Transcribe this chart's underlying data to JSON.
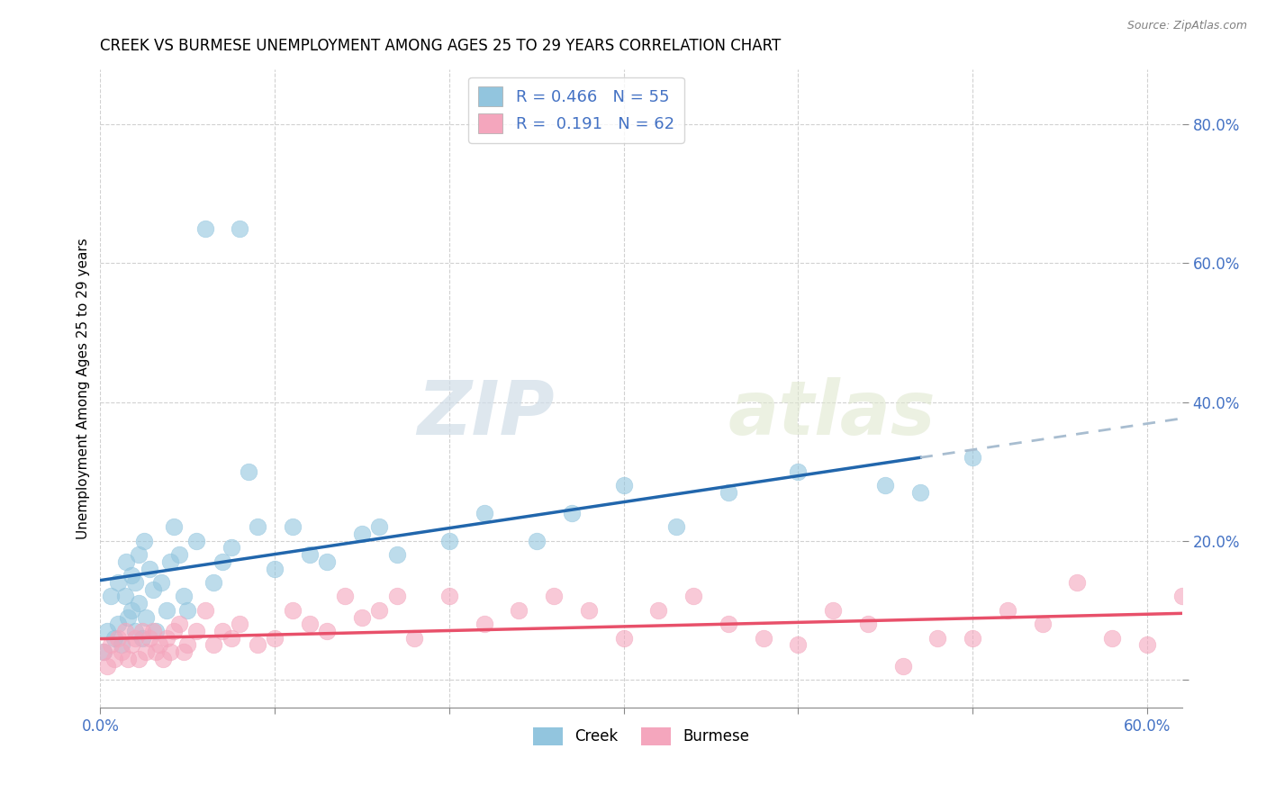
{
  "title": "CREEK VS BURMESE UNEMPLOYMENT AMONG AGES 25 TO 29 YEARS CORRELATION CHART",
  "source": "Source: ZipAtlas.com",
  "ylabel": "Unemployment Among Ages 25 to 29 years",
  "xlim": [
    0.0,
    0.62
  ],
  "ylim": [
    -0.04,
    0.88
  ],
  "xtick_vals": [
    0.0,
    0.1,
    0.2,
    0.3,
    0.4,
    0.5,
    0.6
  ],
  "ytick_vals": [
    0.0,
    0.2,
    0.4,
    0.6,
    0.8
  ],
  "creek_color": "#92c5de",
  "burmese_color": "#f4a6bd",
  "creek_line_color": "#2166ac",
  "burmese_line_color": "#e8506a",
  "trend_ext_color": "#a8bdd0",
  "legend_creek_r": "0.466",
  "legend_creek_n": "55",
  "legend_burmese_r": "0.191",
  "legend_burmese_n": "62",
  "watermark_zip": "ZIP",
  "watermark_atlas": "atlas",
  "background_color": "#ffffff",
  "grid_color": "#cccccc",
  "creek_x": [
    0.002,
    0.004,
    0.006,
    0.008,
    0.01,
    0.01,
    0.012,
    0.014,
    0.015,
    0.016,
    0.018,
    0.018,
    0.02,
    0.02,
    0.022,
    0.022,
    0.024,
    0.025,
    0.026,
    0.028,
    0.03,
    0.032,
    0.035,
    0.038,
    0.04,
    0.042,
    0.045,
    0.048,
    0.05,
    0.055,
    0.06,
    0.065,
    0.07,
    0.075,
    0.08,
    0.085,
    0.09,
    0.1,
    0.11,
    0.12,
    0.13,
    0.15,
    0.16,
    0.17,
    0.2,
    0.22,
    0.25,
    0.27,
    0.3,
    0.33,
    0.36,
    0.4,
    0.45,
    0.47,
    0.5
  ],
  "creek_y": [
    0.04,
    0.07,
    0.12,
    0.06,
    0.14,
    0.08,
    0.05,
    0.12,
    0.17,
    0.09,
    0.15,
    0.1,
    0.14,
    0.07,
    0.18,
    0.11,
    0.06,
    0.2,
    0.09,
    0.16,
    0.13,
    0.07,
    0.14,
    0.1,
    0.17,
    0.22,
    0.18,
    0.12,
    0.1,
    0.2,
    0.65,
    0.14,
    0.17,
    0.19,
    0.65,
    0.3,
    0.22,
    0.16,
    0.22,
    0.18,
    0.17,
    0.21,
    0.22,
    0.18,
    0.2,
    0.24,
    0.2,
    0.24,
    0.28,
    0.22,
    0.27,
    0.3,
    0.28,
    0.27,
    0.32
  ],
  "burmese_x": [
    0.002,
    0.004,
    0.006,
    0.008,
    0.01,
    0.012,
    0.014,
    0.016,
    0.018,
    0.02,
    0.022,
    0.024,
    0.026,
    0.028,
    0.03,
    0.032,
    0.034,
    0.036,
    0.038,
    0.04,
    0.042,
    0.045,
    0.048,
    0.05,
    0.055,
    0.06,
    0.065,
    0.07,
    0.075,
    0.08,
    0.09,
    0.1,
    0.11,
    0.12,
    0.13,
    0.14,
    0.15,
    0.16,
    0.17,
    0.18,
    0.2,
    0.22,
    0.24,
    0.26,
    0.28,
    0.3,
    0.32,
    0.34,
    0.36,
    0.38,
    0.4,
    0.42,
    0.44,
    0.46,
    0.48,
    0.5,
    0.52,
    0.54,
    0.56,
    0.58,
    0.6,
    0.62
  ],
  "burmese_y": [
    0.04,
    0.02,
    0.05,
    0.03,
    0.06,
    0.04,
    0.07,
    0.03,
    0.05,
    0.06,
    0.03,
    0.07,
    0.04,
    0.06,
    0.07,
    0.04,
    0.05,
    0.03,
    0.06,
    0.04,
    0.07,
    0.08,
    0.04,
    0.05,
    0.07,
    0.1,
    0.05,
    0.07,
    0.06,
    0.08,
    0.05,
    0.06,
    0.1,
    0.08,
    0.07,
    0.12,
    0.09,
    0.1,
    0.12,
    0.06,
    0.12,
    0.08,
    0.1,
    0.12,
    0.1,
    0.06,
    0.1,
    0.12,
    0.08,
    0.06,
    0.05,
    0.1,
    0.08,
    0.02,
    0.06,
    0.06,
    0.1,
    0.08,
    0.14,
    0.06,
    0.05,
    0.12
  ]
}
